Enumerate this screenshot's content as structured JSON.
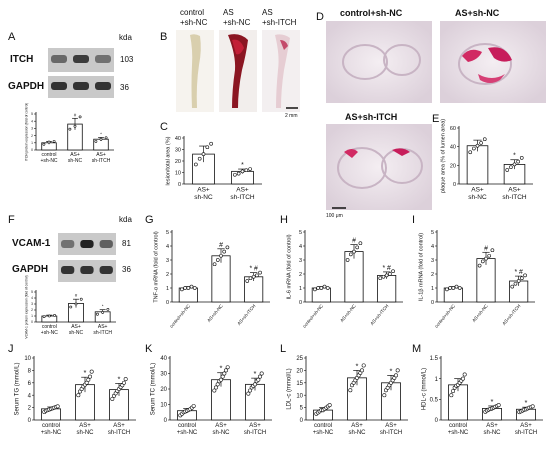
{
  "panel_letters": [
    "A",
    "B",
    "C",
    "D",
    "E",
    "F",
    "G",
    "H",
    "I",
    "J",
    "K",
    "L",
    "M"
  ],
  "blots": {
    "A": {
      "unit": "kda",
      "bands": [
        {
          "protein": "ITCH",
          "kda": "103",
          "intensity": [
            0.55,
            0.8,
            0.5
          ]
        },
        {
          "protein": "GAPDH",
          "kda": "36",
          "intensity": [
            0.85,
            0.85,
            0.85
          ]
        }
      ]
    },
    "F": {
      "unit": "kda",
      "bands": [
        {
          "protein": "VCAM-1",
          "kda": "81",
          "intensity": [
            0.5,
            0.95,
            0.6
          ]
        },
        {
          "protein": "GAPDH",
          "kda": "36",
          "intensity": [
            0.85,
            0.85,
            0.85
          ]
        }
      ]
    }
  },
  "photos": {
    "B": {
      "columns": [
        {
          "line1": "control",
          "line2": "+sh-NC"
        },
        {
          "line1": "AS",
          "line2": "+sh-NC"
        },
        {
          "line1": "AS",
          "line2": "+sh-ITCH"
        }
      ],
      "scale": "2 mm"
    },
    "D": {
      "tiles": [
        "control+sh-NC",
        "AS+sh-NC",
        "AS+sh-ITCH"
      ],
      "scale": "100 μm"
    }
  },
  "chart_data": [
    {
      "panel": "A",
      "type": "bar",
      "ylabel": "ITCH protein expression (fold of control)",
      "ylim": [
        0,
        5
      ],
      "yticks": [
        0,
        1,
        2,
        3,
        4,
        5
      ],
      "categories": [
        [
          "control",
          "+sh-NC"
        ],
        [
          "AS+",
          "sh-NC"
        ],
        [
          "AS+",
          "sh-ITCH"
        ]
      ],
      "rotate": false,
      "values": [
        1.0,
        3.6,
        1.5
      ],
      "errors": [
        0.2,
        0.8,
        0.25
      ],
      "marks": [
        "",
        "#",
        "*"
      ],
      "points": [
        [
          0.8,
          1.1,
          1.2
        ],
        [
          2.9,
          3.3,
          4.6
        ],
        [
          1.2,
          1.5,
          1.7
        ]
      ]
    },
    {
      "panel": "C",
      "type": "bar",
      "ylabel": "lesion/total area (%)",
      "ylim": [
        0,
        40
      ],
      "yticks": [
        0,
        10,
        20,
        30,
        40
      ],
      "categories": [
        [
          "AS+",
          "sh-NC"
        ],
        [
          "AS+",
          "sh-ITCH"
        ]
      ],
      "rotate": false,
      "values": [
        26,
        11
      ],
      "errors": [
        7,
        2
      ],
      "marks": [
        "",
        "*"
      ],
      "points": [
        [
          17,
          22,
          26,
          32,
          35
        ],
        [
          8,
          9,
          11,
          12,
          13
        ]
      ]
    },
    {
      "panel": "E",
      "type": "bar",
      "ylabel": "plaque area (% of lumen area)",
      "ylim": [
        0,
        60
      ],
      "yticks": [
        0,
        20,
        40,
        60
      ],
      "categories": [
        [
          "AS+",
          "sh-NC"
        ],
        [
          "AS+",
          "sh-ITCH"
        ]
      ],
      "rotate": false,
      "values": [
        41,
        21
      ],
      "errors": [
        6,
        5
      ],
      "marks": [
        "",
        "*"
      ],
      "points": [
        [
          34,
          38,
          41,
          44,
          48
        ],
        [
          15,
          18,
          21,
          24,
          28
        ]
      ]
    },
    {
      "panel": "F",
      "type": "bar",
      "ylabel": "VCAM-1 protein expression (fold of control)",
      "ylim": [
        0,
        5
      ],
      "yticks": [
        0,
        1,
        2,
        3,
        4,
        5
      ],
      "categories": [
        [
          "control",
          "+sh-NC"
        ],
        [
          "AS+",
          "sh-NC"
        ],
        [
          "AS+",
          "sh-ITCH"
        ]
      ],
      "rotate": false,
      "values": [
        1.0,
        3.1,
        1.7
      ],
      "errors": [
        0.15,
        0.7,
        0.35
      ],
      "marks": [
        "",
        "#",
        "*"
      ],
      "points": [
        [
          0.9,
          1.0,
          1.1
        ],
        [
          2.5,
          3.0,
          3.8
        ],
        [
          1.3,
          1.6,
          2.1
        ]
      ]
    },
    {
      "panel": "G",
      "type": "bar",
      "ylabel": "TNF-α mRNA (fold of control)",
      "ylim": [
        0,
        5
      ],
      "yticks": [
        0,
        1,
        2,
        3,
        4,
        5
      ],
      "categories": [
        [
          "control+sh-NC"
        ],
        [
          "AS+sh-NC"
        ],
        [
          "AS+sh-ITCH"
        ]
      ],
      "rotate": true,
      "values": [
        1.0,
        3.3,
        1.8
      ],
      "errors": [
        0.1,
        0.5,
        0.3
      ],
      "marks": [
        "",
        "#",
        "* #"
      ],
      "points": [
        [
          0.9,
          1.0,
          1.0,
          1.1,
          1.0
        ],
        [
          2.7,
          3.0,
          3.3,
          3.6,
          3.9
        ],
        [
          1.5,
          1.7,
          1.8,
          1.9,
          2.1
        ]
      ]
    },
    {
      "panel": "H",
      "type": "bar",
      "ylabel": "IL-6 mRNA (fold of control)",
      "ylim": [
        0,
        5
      ],
      "yticks": [
        0,
        1,
        2,
        3,
        4,
        5
      ],
      "categories": [
        [
          "control+sh-NC"
        ],
        [
          "AS+sh-NC"
        ],
        [
          "AS+sh-ITCH"
        ]
      ],
      "rotate": true,
      "values": [
        1.0,
        3.6,
        1.9
      ],
      "errors": [
        0.1,
        0.5,
        0.25
      ],
      "marks": [
        "",
        "#",
        "* #"
      ],
      "points": [
        [
          0.9,
          1.0,
          1.0,
          1.1,
          1.0
        ],
        [
          3.0,
          3.4,
          3.6,
          3.9,
          4.2
        ],
        [
          1.7,
          1.8,
          1.9,
          2.0,
          2.2
        ]
      ]
    },
    {
      "panel": "I",
      "type": "bar",
      "ylabel": "IL-1β mRNA (fold of control)",
      "ylim": [
        0,
        5
      ],
      "yticks": [
        0,
        1,
        2,
        3,
        4,
        5
      ],
      "categories": [
        [
          "control+sh-NC"
        ],
        [
          "AS+sh-NC"
        ],
        [
          "AS+sh-ITCH"
        ]
      ],
      "rotate": true,
      "values": [
        1.0,
        3.1,
        1.5
      ],
      "errors": [
        0.1,
        0.45,
        0.35
      ],
      "marks": [
        "",
        "#",
        "* #"
      ],
      "points": [
        [
          0.9,
          1.0,
          1.0,
          1.1,
          1.0
        ],
        [
          2.6,
          2.9,
          3.1,
          3.3,
          3.7
        ],
        [
          1.1,
          1.3,
          1.5,
          1.7,
          1.9
        ]
      ]
    },
    {
      "panel": "J",
      "type": "bar",
      "ylabel": "Serum TG (mmol/L)",
      "ylim": [
        0,
        10
      ],
      "yticks": [
        0,
        2,
        4,
        6,
        8,
        10
      ],
      "categories": [
        [
          "control",
          "+sh-NC"
        ],
        [
          "AS+",
          "sh-NC"
        ],
        [
          "AS+",
          "sh-ITCH"
        ]
      ],
      "rotate": false,
      "values": [
        1.8,
        5.7,
        4.9
      ],
      "errors": [
        0.3,
        1.2,
        1.0
      ],
      "marks": [
        "",
        "*",
        "*"
      ],
      "points": [
        [
          1.3,
          1.5,
          1.6,
          1.7,
          1.8,
          1.9,
          2.0,
          2.1,
          2.2
        ],
        [
          4.0,
          4.6,
          5.0,
          5.4,
          5.7,
          6.0,
          6.5,
          7.0,
          7.8
        ],
        [
          3.4,
          3.9,
          4.3,
          4.7,
          5.0,
          5.3,
          5.6,
          6.0,
          6.6
        ]
      ]
    },
    {
      "panel": "K",
      "type": "bar",
      "ylabel": "Serum TC (mmol/L)",
      "ylim": [
        0,
        40
      ],
      "yticks": [
        0,
        10,
        20,
        30,
        40
      ],
      "categories": [
        [
          "control",
          "+sh-NC"
        ],
        [
          "AS+",
          "sh-NC"
        ],
        [
          "AS+",
          "sh-ITCH"
        ]
      ],
      "rotate": false,
      "values": [
        6,
        26,
        23
      ],
      "errors": [
        1.5,
        4.5,
        4
      ],
      "marks": [
        "",
        "*",
        "*"
      ],
      "points": [
        [
          3,
          4,
          5,
          5.5,
          6,
          6.5,
          7,
          8,
          9
        ],
        [
          19,
          21,
          23,
          25,
          26,
          28,
          30,
          32,
          34
        ],
        [
          17,
          19,
          21,
          22,
          23,
          25,
          26,
          28,
          30
        ]
      ]
    },
    {
      "panel": "L",
      "type": "bar",
      "ylabel": "LDL-c (mmol/L)",
      "ylim": [
        0,
        25
      ],
      "yticks": [
        0,
        5,
        10,
        15,
        20,
        25
      ],
      "categories": [
        [
          "control",
          "+sh-NC"
        ],
        [
          "AS+",
          "sh-NC"
        ],
        [
          "AS+",
          "sh-ITCH"
        ]
      ],
      "rotate": false,
      "values": [
        4,
        17,
        15
      ],
      "errors": [
        1,
        3,
        3
      ],
      "marks": [
        "",
        "*",
        "*"
      ],
      "points": [
        [
          2.5,
          3,
          3.5,
          4,
          4,
          4.5,
          5,
          5.5,
          6
        ],
        [
          12,
          14,
          15,
          16,
          17,
          18,
          19,
          20,
          22
        ],
        [
          10,
          12,
          13,
          14,
          15,
          16,
          17,
          18,
          20
        ]
      ]
    },
    {
      "panel": "M",
      "type": "bar",
      "ylabel": "HDL-c (mmol/L)",
      "ylim": [
        0,
        1.5
      ],
      "yticks": [
        0,
        0.5,
        1.0,
        1.5
      ],
      "categories": [
        [
          "control",
          "+sh-NC"
        ],
        [
          "AS+",
          "sh-NC"
        ],
        [
          "AS+",
          "sh-ITCH"
        ]
      ],
      "rotate": false,
      "values": [
        0.85,
        0.28,
        0.26
      ],
      "errors": [
        0.15,
        0.06,
        0.05
      ],
      "marks": [
        "",
        "*",
        "*"
      ],
      "points": [
        [
          0.6,
          0.7,
          0.78,
          0.83,
          0.85,
          0.9,
          0.95,
          1.0,
          1.1
        ],
        [
          0.2,
          0.23,
          0.25,
          0.27,
          0.28,
          0.3,
          0.32,
          0.34,
          0.36
        ],
        [
          0.19,
          0.21,
          0.23,
          0.25,
          0.26,
          0.28,
          0.3,
          0.31,
          0.33
        ]
      ]
    }
  ]
}
